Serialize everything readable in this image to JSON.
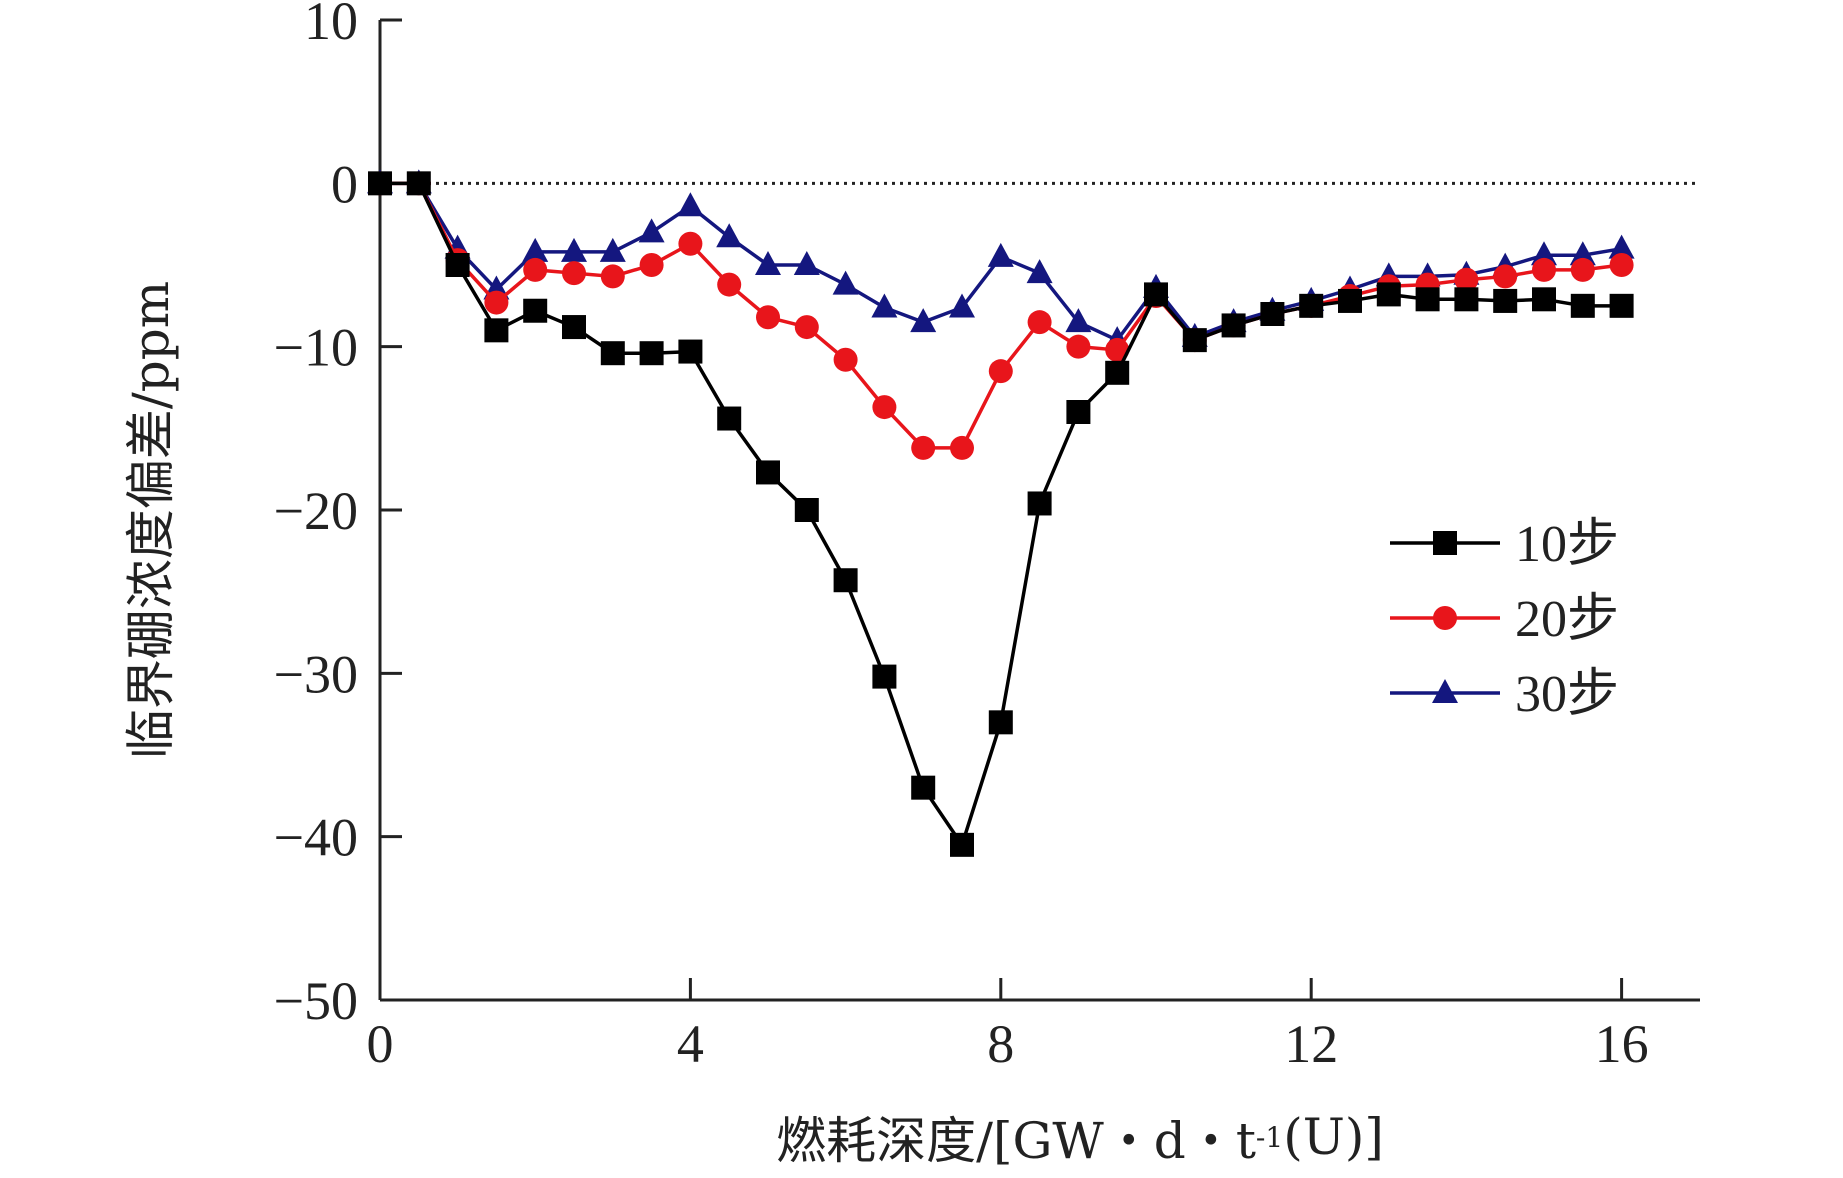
{
  "chart_data": {
    "type": "line",
    "title": "",
    "xlabel": "燃耗深度/[GW・d・t⁻¹(U)]",
    "xlabel_parts": {
      "main": "燃耗深度/[GW・d・t",
      "sup": "-1",
      "tail": "(U)]"
    },
    "ylabel": "临界硼浓度偏差/ppm",
    "xlim": [
      0,
      17
    ],
    "ylim": [
      -50,
      10
    ],
    "xticks": [
      0,
      4,
      8,
      12,
      16
    ],
    "yticks": [
      10,
      0,
      -10,
      -20,
      -30,
      -40,
      -50
    ],
    "ytick_labels": [
      "10",
      "0",
      "−10",
      "−20",
      "−30",
      "−40",
      "−50"
    ],
    "reference_line": {
      "y": 0,
      "style": "dotted"
    },
    "legend_position": "right",
    "grid": false,
    "series": [
      {
        "name": "10步",
        "color": "#000000",
        "marker": "square",
        "x": [
          0,
          0.5,
          1,
          1.5,
          2,
          2.5,
          3,
          3.5,
          4,
          4.5,
          5,
          5.5,
          6,
          6.5,
          7,
          7.5,
          8,
          8.5,
          9,
          9.5,
          10,
          10.5,
          11,
          11.5,
          12,
          12.5,
          13,
          13.5,
          14,
          14.5,
          15,
          15.5,
          16
        ],
        "values": [
          0,
          0,
          -5,
          -9,
          -7.8,
          -8.8,
          -10.4,
          -10.4,
          -10.3,
          -14.4,
          -17.7,
          -20,
          -24.3,
          -30.2,
          -37,
          -40.5,
          -33,
          -19.6,
          -14,
          -11.6,
          -6.8,
          -9.6,
          -8.7,
          -8,
          -7.5,
          -7.2,
          -6.8,
          -7.1,
          -7.1,
          -7.2,
          -7.1,
          -7.5,
          -7.5
        ]
      },
      {
        "name": "20步",
        "color": "#e8151b",
        "marker": "circle",
        "x": [
          0,
          0.5,
          1,
          1.5,
          2,
          2.5,
          3,
          3.5,
          4,
          4.5,
          5,
          5.5,
          6,
          6.5,
          7,
          7.5,
          8,
          8.5,
          9,
          9.5,
          10,
          10.5,
          11,
          11.5,
          12,
          12.5,
          13,
          13.5,
          14,
          14.5,
          15,
          15.5,
          16
        ],
        "values": [
          0,
          0,
          -4.7,
          -7.3,
          -5.3,
          -5.5,
          -5.7,
          -5,
          -3.7,
          -6.2,
          -8.2,
          -8.8,
          -10.8,
          -13.7,
          -16.2,
          -16.2,
          -11.5,
          -8.5,
          -10,
          -10.2,
          -6.9,
          -9.6,
          -8.7,
          -8,
          -7.5,
          -6.9,
          -6.3,
          -6.2,
          -5.9,
          -5.7,
          -5.3,
          -5.3,
          -5
        ]
      },
      {
        "name": "30步",
        "color": "#14177f",
        "marker": "triangle",
        "x": [
          0,
          0.5,
          1,
          1.5,
          2,
          2.5,
          3,
          3.5,
          4,
          4.5,
          5,
          5.5,
          6,
          6.5,
          7,
          7.5,
          8,
          8.5,
          9,
          9.5,
          10,
          10.5,
          11,
          11.5,
          12,
          12.5,
          13,
          13.5,
          14,
          14.5,
          15,
          15.5,
          16
        ],
        "values": [
          0,
          0,
          -4,
          -6.5,
          -4.2,
          -4.2,
          -4.2,
          -3,
          -1.4,
          -3.3,
          -5,
          -5,
          -6.2,
          -7.6,
          -8.5,
          -7.6,
          -4.5,
          -5.5,
          -8.5,
          -9.6,
          -6.4,
          -9.4,
          -8.5,
          -7.8,
          -7.2,
          -6.5,
          -5.7,
          -5.7,
          -5.6,
          -5.1,
          -4.4,
          -4.4,
          -4
        ]
      }
    ]
  }
}
